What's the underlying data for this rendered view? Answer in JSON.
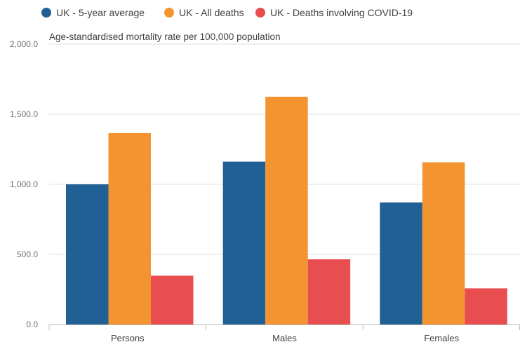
{
  "chart_data": {
    "type": "bar",
    "ylabel": "Age-standardised mortality rate per 100,000 population",
    "categories": [
      "Persons",
      "Males",
      "Females"
    ],
    "series": [
      {
        "name": "UK - 5-year average",
        "color": "#206095",
        "values": [
          1000,
          1162,
          871
        ]
      },
      {
        "name": "UK - All deaths",
        "color": "#f39431",
        "values": [
          1365,
          1625,
          1157
        ]
      },
      {
        "name": "UK - Deaths involving COVID-19",
        "color": "#e84e4f",
        "values": [
          348,
          465,
          258
        ]
      }
    ],
    "ylim": [
      0,
      2000
    ],
    "yticks": [
      0,
      500,
      1000,
      1500,
      2000
    ],
    "ytick_labels": [
      "0.0",
      "500.0",
      "1,000.0",
      "1,500.0",
      "2,000.0"
    ],
    "grid": true,
    "legend_position": "top-left"
  }
}
